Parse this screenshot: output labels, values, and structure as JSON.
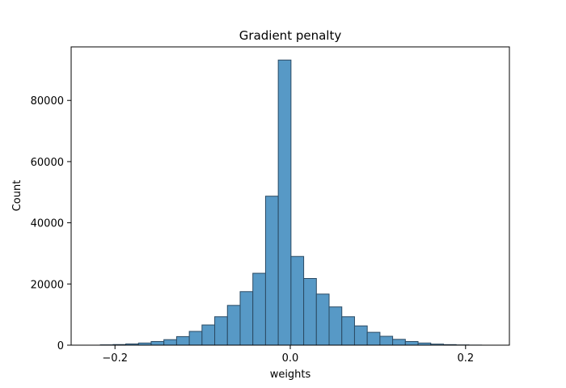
{
  "chart_data": {
    "type": "bar",
    "title": "Gradient penalty",
    "xlabel": "weights",
    "ylabel": "Count",
    "xlim": [
      -0.25,
      0.25
    ],
    "ylim": [
      0,
      97500
    ],
    "xticks": [
      -0.2,
      0.0,
      0.2
    ],
    "xtick_labels": [
      "−0.2",
      "0.0",
      "0.2"
    ],
    "yticks": [
      0,
      20000,
      40000,
      60000,
      80000
    ],
    "ytick_labels": [
      "0",
      "20000",
      "40000",
      "60000",
      "80000"
    ],
    "grid": false,
    "legend": "none",
    "bar_color": "#5799c6",
    "edge_color": "#2b4a63",
    "bins": [
      {
        "x0": -0.2167,
        "x1": -0.2022,
        "count": 100
      },
      {
        "x0": -0.2022,
        "x1": -0.1877,
        "count": 200
      },
      {
        "x0": -0.1877,
        "x1": -0.1732,
        "count": 400
      },
      {
        "x0": -0.1732,
        "x1": -0.1587,
        "count": 700
      },
      {
        "x0": -0.1587,
        "x1": -0.1442,
        "count": 1200
      },
      {
        "x0": -0.1442,
        "x1": -0.1297,
        "count": 1800
      },
      {
        "x0": -0.1297,
        "x1": -0.1152,
        "count": 2800
      },
      {
        "x0": -0.1152,
        "x1": -0.1007,
        "count": 4500
      },
      {
        "x0": -0.1007,
        "x1": -0.0862,
        "count": 6600
      },
      {
        "x0": -0.0862,
        "x1": -0.0717,
        "count": 9300
      },
      {
        "x0": -0.0717,
        "x1": -0.0572,
        "count": 13000
      },
      {
        "x0": -0.0572,
        "x1": -0.0427,
        "count": 17500
      },
      {
        "x0": -0.0427,
        "x1": -0.0282,
        "count": 23500
      },
      {
        "x0": -0.0282,
        "x1": -0.0137,
        "count": 48700
      },
      {
        "x0": -0.0137,
        "x1": 0.0008,
        "count": 93200
      },
      {
        "x0": 0.0008,
        "x1": 0.0153,
        "count": 29000
      },
      {
        "x0": 0.0153,
        "x1": 0.0298,
        "count": 21800
      },
      {
        "x0": 0.0298,
        "x1": 0.0443,
        "count": 16700
      },
      {
        "x0": 0.0443,
        "x1": 0.0588,
        "count": 12500
      },
      {
        "x0": 0.0588,
        "x1": 0.0733,
        "count": 9300
      },
      {
        "x0": 0.0733,
        "x1": 0.0878,
        "count": 6300
      },
      {
        "x0": 0.0878,
        "x1": 0.1023,
        "count": 4200
      },
      {
        "x0": 0.1023,
        "x1": 0.1168,
        "count": 2900
      },
      {
        "x0": 0.1168,
        "x1": 0.1313,
        "count": 1900
      },
      {
        "x0": 0.1313,
        "x1": 0.1458,
        "count": 1200
      },
      {
        "x0": 0.1458,
        "x1": 0.1603,
        "count": 700
      },
      {
        "x0": 0.1603,
        "x1": 0.1748,
        "count": 350
      },
      {
        "x0": 0.1748,
        "x1": 0.1893,
        "count": 180
      },
      {
        "x0": 0.1893,
        "x1": 0.2038,
        "count": 80
      },
      {
        "x0": 0.2038,
        "x1": 0.2183,
        "count": 30
      }
    ]
  }
}
